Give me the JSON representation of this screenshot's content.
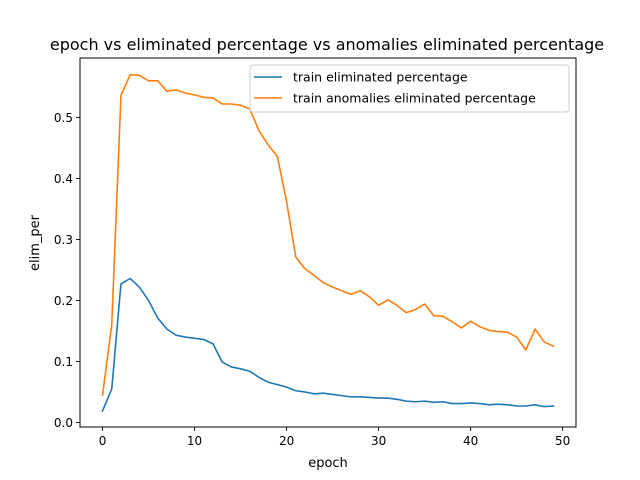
{
  "chart_data": {
    "type": "line",
    "title": "epoch vs eliminated percentage vs anomalies eliminated percentage",
    "xlabel": "epoch",
    "ylabel": "elim_per",
    "xlim": [
      -2.45,
      51.45
    ],
    "ylim": [
      -0.0074,
      0.5974
    ],
    "xticks": [
      0,
      10,
      20,
      30,
      40,
      50
    ],
    "yticks": [
      0.0,
      0.1,
      0.2,
      0.3,
      0.4,
      0.5
    ],
    "xtick_labels": [
      "0",
      "10",
      "20",
      "30",
      "40",
      "50"
    ],
    "ytick_labels": [
      "0.0",
      "0.1",
      "0.2",
      "0.3",
      "0.4",
      "0.5"
    ],
    "grid": false,
    "legend_position": "top-right",
    "x": [
      0,
      1,
      2,
      3,
      4,
      5,
      6,
      7,
      8,
      9,
      10,
      11,
      12,
      13,
      14,
      15,
      16,
      17,
      18,
      19,
      20,
      21,
      22,
      23,
      24,
      25,
      26,
      27,
      28,
      29,
      30,
      31,
      32,
      33,
      34,
      35,
      36,
      37,
      38,
      39,
      40,
      41,
      42,
      43,
      44,
      45,
      46,
      47,
      48,
      49
    ],
    "series": [
      {
        "name": "train eliminated percentage",
        "color": "#1f77b4",
        "values": [
          0.019,
          0.055,
          0.227,
          0.236,
          0.222,
          0.2,
          0.171,
          0.153,
          0.143,
          0.14,
          0.138,
          0.136,
          0.129,
          0.099,
          0.091,
          0.088,
          0.084,
          0.074,
          0.066,
          0.062,
          0.058,
          0.052,
          0.05,
          0.047,
          0.048,
          0.046,
          0.044,
          0.042,
          0.042,
          0.041,
          0.04,
          0.04,
          0.038,
          0.035,
          0.034,
          0.035,
          0.033,
          0.034,
          0.031,
          0.031,
          0.032,
          0.031,
          0.029,
          0.03,
          0.029,
          0.027,
          0.027,
          0.029,
          0.026,
          0.027
        ]
      },
      {
        "name": "train anomalies eliminated percentage",
        "color": "#ff7f0e",
        "values": [
          0.045,
          0.16,
          0.536,
          0.57,
          0.569,
          0.56,
          0.56,
          0.543,
          0.545,
          0.54,
          0.537,
          0.533,
          0.532,
          0.522,
          0.522,
          0.52,
          0.514,
          0.478,
          0.455,
          0.436,
          0.362,
          0.271,
          0.252,
          0.241,
          0.229,
          0.222,
          0.216,
          0.21,
          0.216,
          0.206,
          0.192,
          0.201,
          0.192,
          0.18,
          0.185,
          0.194,
          0.175,
          0.174,
          0.165,
          0.155,
          0.166,
          0.157,
          0.151,
          0.149,
          0.148,
          0.14,
          0.119,
          0.153,
          0.132,
          0.125
        ]
      }
    ]
  }
}
